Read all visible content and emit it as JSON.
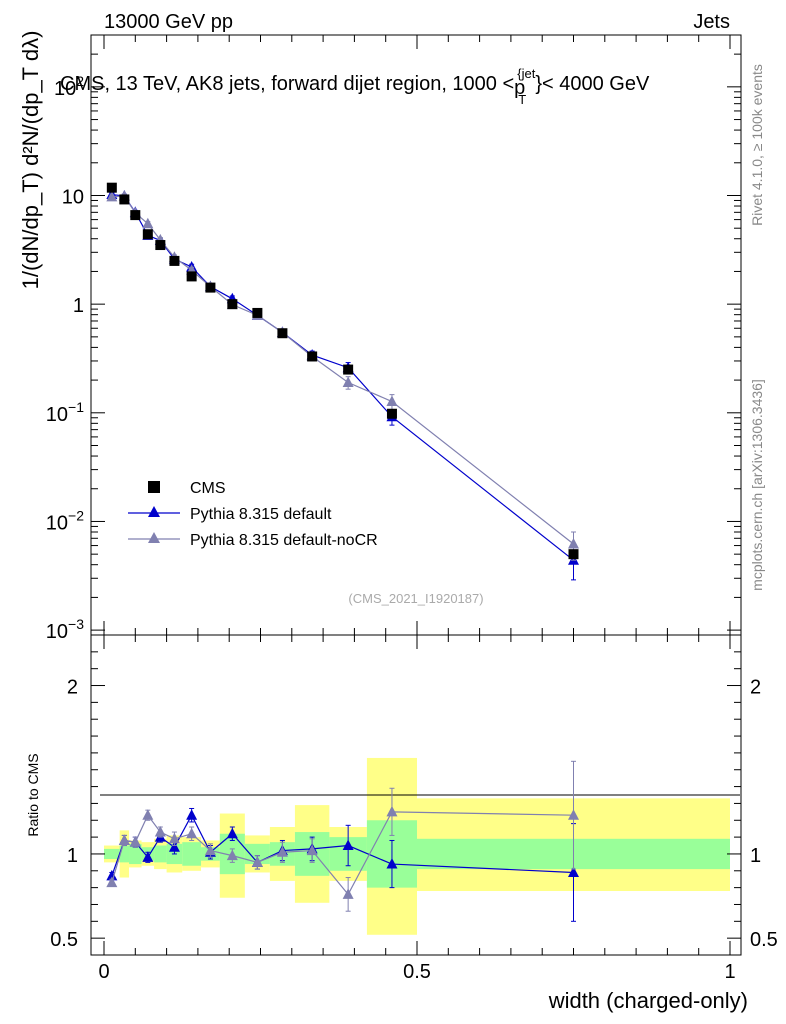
{
  "header": {
    "left": "13000 GeV pp",
    "right": "Jets"
  },
  "side_text": {
    "rivet": "Rivet 4.1.0, ≥ 100k events",
    "mcplots": "mcplots.cern.ch [arXiv:1306.3436]"
  },
  "colors": {
    "cms": "#000000",
    "default": "#0000cc",
    "nocr": "#8080b0",
    "band_inner": "#99ff99",
    "band_outer": "#ffff88"
  },
  "chart_data": [
    {
      "type": "scatter",
      "title": "CMS, 13 TeV, AK8 jets, forward dijet region, 1000 <p_T^{jet}< 4000 GeV",
      "ylabel": "1/(dN/dp_T) d²N/(dp_T dλ)",
      "yscale": "log",
      "xlim": [
        0,
        1
      ],
      "ylim": [
        0.001,
        300
      ],
      "y_ticks": [
        {
          "value": 0.001,
          "base": "10",
          "exp": "−3"
        },
        {
          "value": 0.01,
          "base": "10",
          "exp": "−2"
        },
        {
          "value": 0.1,
          "base": "10",
          "exp": "−1"
        },
        {
          "value": 1,
          "base": "1",
          "exp": ""
        },
        {
          "value": 10,
          "base": "10",
          "exp": ""
        },
        {
          "value": 100,
          "base": "10",
          "exp": "2"
        }
      ],
      "watermark": "(CMS_2021_I1920187)",
      "legend": [
        "CMS",
        "Pythia 8.315 default",
        "Pythia 8.315 default-noCR"
      ],
      "x_edges": [
        0,
        0.025,
        0.04,
        0.06,
        0.08,
        0.1,
        0.125,
        0.155,
        0.185,
        0.225,
        0.265,
        0.305,
        0.36,
        0.42,
        0.5,
        1.0
      ],
      "series": [
        {
          "name": "CMS",
          "x": [
            0.0125,
            0.0325,
            0.05,
            0.07,
            0.09,
            0.1125,
            0.14,
            0.17,
            0.205,
            0.245,
            0.285,
            0.3325,
            0.39,
            0.46,
            0.75
          ],
          "y": [
            11.8,
            9.2,
            6.6,
            4.4,
            3.5,
            2.5,
            1.8,
            1.42,
            1.0,
            0.83,
            0.54,
            0.33,
            0.25,
            0.098,
            0.005
          ]
        },
        {
          "name": "Pythia 8.315 default",
          "x": [
            0.0125,
            0.0325,
            0.05,
            0.07,
            0.09,
            0.1125,
            0.14,
            0.17,
            0.205,
            0.245,
            0.285,
            0.3325,
            0.39,
            0.46,
            0.75
          ],
          "y": [
            10.2,
            9.9,
            7.0,
            4.3,
            3.85,
            2.6,
            2.2,
            1.45,
            1.12,
            0.79,
            0.55,
            0.34,
            0.26,
            0.092,
            0.0044
          ],
          "err": [
            0.4,
            0.4,
            0.3,
            0.2,
            0.2,
            0.13,
            0.13,
            0.08,
            0.07,
            0.05,
            0.04,
            0.03,
            0.03,
            0.015,
            0.0015
          ]
        },
        {
          "name": "Pythia 8.315 default-noCR",
          "x": [
            0.0125,
            0.0325,
            0.05,
            0.07,
            0.09,
            0.1125,
            0.14,
            0.17,
            0.205,
            0.245,
            0.285,
            0.3325,
            0.39,
            0.46,
            0.75
          ],
          "y": [
            9.7,
            9.9,
            6.9,
            5.5,
            3.9,
            2.7,
            2.05,
            1.45,
            0.99,
            0.79,
            0.55,
            0.33,
            0.19,
            0.127,
            0.0062
          ],
          "err": [
            0.4,
            0.4,
            0.3,
            0.25,
            0.2,
            0.14,
            0.13,
            0.08,
            0.06,
            0.05,
            0.04,
            0.03,
            0.025,
            0.02,
            0.0018
          ]
        }
      ]
    },
    {
      "type": "scatter",
      "ylabel": "Ratio to CMS",
      "xlabel": "width (charged-only)",
      "xlim": [
        0,
        1
      ],
      "ylim": [
        0.4,
        2.3
      ],
      "y_ticks": [
        0.5,
        1,
        2
      ],
      "x_ticks": [
        0,
        0.5,
        1
      ],
      "bands": {
        "inner": [
          [
            0.97,
            1.03
          ],
          [
            0.95,
            1.05
          ],
          [
            0.94,
            1.06
          ],
          [
            0.96,
            1.04
          ],
          [
            0.95,
            1.05
          ],
          [
            0.94,
            1.06
          ],
          [
            0.93,
            1.07
          ],
          [
            0.96,
            1.04
          ],
          [
            0.88,
            1.12
          ],
          [
            0.94,
            1.06
          ],
          [
            0.93,
            1.07
          ],
          [
            0.87,
            1.13
          ],
          [
            0.9,
            1.1
          ],
          [
            0.8,
            1.2
          ],
          [
            0.91,
            1.09
          ]
        ],
        "outer": [
          [
            0.95,
            1.05
          ],
          [
            0.86,
            1.14
          ],
          [
            0.92,
            1.08
          ],
          [
            0.93,
            1.07
          ],
          [
            0.91,
            1.09
          ],
          [
            0.89,
            1.11
          ],
          [
            0.9,
            1.1
          ],
          [
            0.92,
            1.08
          ],
          [
            0.74,
            1.24
          ],
          [
            0.89,
            1.11
          ],
          [
            0.84,
            1.16
          ],
          [
            0.71,
            1.29
          ],
          [
            0.84,
            1.16
          ],
          [
            0.52,
            1.57
          ],
          [
            0.78,
            1.33
          ]
        ]
      },
      "series": [
        {
          "name": "Pythia 8.315 default",
          "x": [
            0.0125,
            0.0325,
            0.05,
            0.07,
            0.09,
            0.1125,
            0.14,
            0.17,
            0.205,
            0.245,
            0.285,
            0.3325,
            0.39,
            0.46,
            0.75
          ],
          "y": [
            0.87,
            1.08,
            1.07,
            0.98,
            1.1,
            1.04,
            1.23,
            1.01,
            1.12,
            0.95,
            1.02,
            1.03,
            1.05,
            0.94,
            0.89
          ],
          "err": [
            0.02,
            0.03,
            0.03,
            0.03,
            0.03,
            0.04,
            0.04,
            0.04,
            0.04,
            0.04,
            0.06,
            0.07,
            0.12,
            0.14,
            0.29
          ]
        },
        {
          "name": "Pythia 8.315 default-noCR",
          "x": [
            0.0125,
            0.0325,
            0.05,
            0.07,
            0.09,
            0.1125,
            0.14,
            0.17,
            0.205,
            0.245,
            0.285,
            0.3325,
            0.39,
            0.46,
            0.75
          ],
          "y": [
            0.83,
            1.08,
            1.07,
            1.23,
            1.13,
            1.09,
            1.12,
            1.02,
            0.99,
            0.95,
            1.01,
            1.02,
            0.76,
            1.25,
            1.23
          ],
          "err": [
            0.02,
            0.03,
            0.03,
            0.03,
            0.03,
            0.04,
            0.04,
            0.04,
            0.04,
            0.04,
            0.06,
            0.07,
            0.1,
            0.14,
            0.32
          ]
        }
      ]
    }
  ]
}
